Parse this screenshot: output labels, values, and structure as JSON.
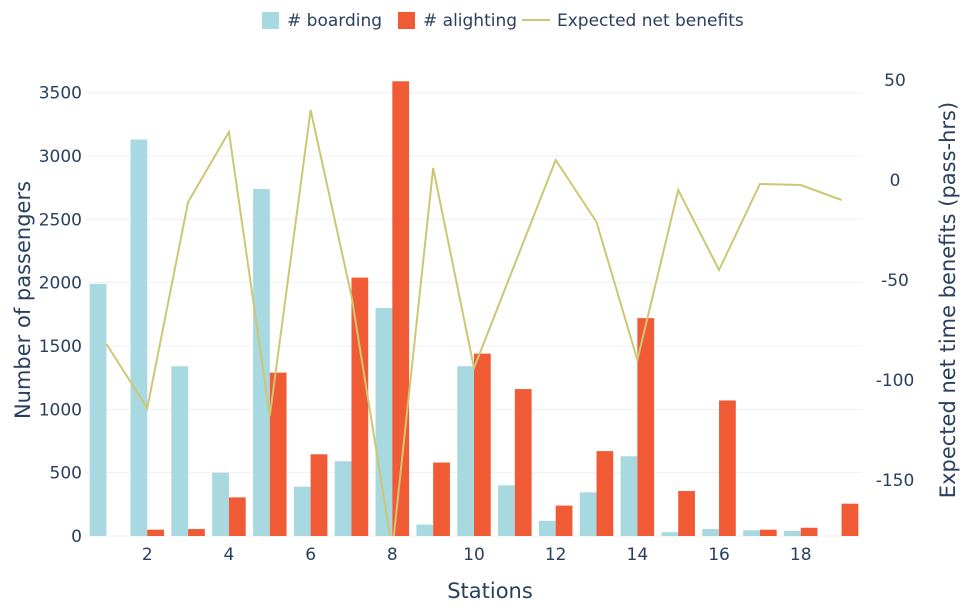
{
  "chart_data": {
    "type": "bar",
    "title": "",
    "xlabel": "Stations",
    "ylabel": "Number of passengers",
    "y2label": "Expected net time benefits (pass-hrs)",
    "x": [
      1,
      2,
      3,
      4,
      5,
      6,
      7,
      8,
      9,
      10,
      11,
      12,
      13,
      14,
      15,
      16,
      17,
      18,
      19
    ],
    "xticks": [
      2,
      4,
      6,
      8,
      10,
      12,
      14,
      16,
      18
    ],
    "ylim": [
      0,
      3600
    ],
    "yticks": [
      0,
      500,
      1000,
      1500,
      2000,
      2500,
      3000,
      3500
    ],
    "y2lim": [
      -178,
      50
    ],
    "y2ticks": [
      -150,
      -100,
      -50,
      0,
      50
    ],
    "grid": true,
    "legend_position": "top-center",
    "series": [
      {
        "name": "# boarding",
        "type": "bar",
        "color": "#a8d8e0",
        "values": [
          1990,
          3130,
          1340,
          500,
          2740,
          390,
          590,
          1800,
          90,
          1340,
          400,
          120,
          345,
          630,
          30,
          55,
          45,
          40,
          0
        ]
      },
      {
        "name": "# alighting",
        "type": "bar",
        "color": "#f05a35",
        "values": [
          0,
          50,
          55,
          305,
          1290,
          645,
          2040,
          3590,
          580,
          1440,
          1160,
          240,
          670,
          1720,
          355,
          1070,
          50,
          65,
          255
        ]
      },
      {
        "name": "Expected net benefits",
        "type": "line",
        "axis": "y2",
        "color": "#ccc774",
        "values": [
          -82,
          -114,
          -11,
          24,
          -118,
          35,
          -58,
          -185,
          6,
          -94,
          -42,
          10,
          -21,
          -90,
          -5,
          -45,
          -2,
          -2.5,
          -10
        ]
      }
    ]
  }
}
